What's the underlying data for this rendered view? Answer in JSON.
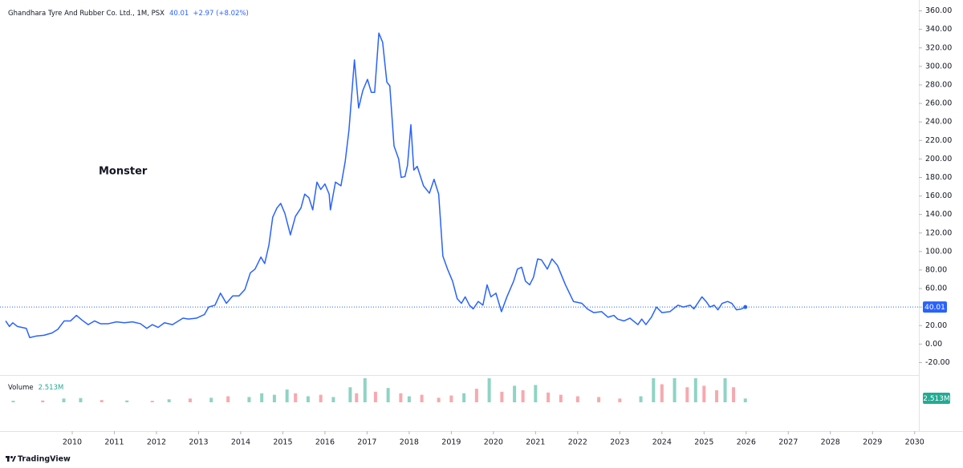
{
  "chart_data": [
    {
      "type": "line",
      "title": "Ghandhara Tyre And Rubber Co. Ltd., 1M, PSX",
      "last_price": 40.01,
      "change": "+2.97 (+8.02%)",
      "annotation": "Monster",
      "color": "#2962ff",
      "xlim": [
        2008.4,
        2030.1
      ],
      "xticks": [
        2010,
        2011,
        2012,
        2013,
        2014,
        2015,
        2016,
        2017,
        2018,
        2019,
        2020,
        2021,
        2022,
        2023,
        2024,
        2025,
        2026,
        2027,
        2028,
        2029,
        2030
      ],
      "ylim": [
        -30,
        370
      ],
      "yticks": [
        {
          "value": 360,
          "label": "360.00"
        },
        {
          "value": 340,
          "label": "340.00"
        },
        {
          "value": 320,
          "label": "320.00"
        },
        {
          "value": 300,
          "label": "300.00"
        },
        {
          "value": 280,
          "label": "280.00"
        },
        {
          "value": 260,
          "label": "260.00"
        },
        {
          "value": 240,
          "label": "240.00"
        },
        {
          "value": 220,
          "label": "220.00"
        },
        {
          "value": 200,
          "label": "200.00"
        },
        {
          "value": 180,
          "label": "180.00"
        },
        {
          "value": 160,
          "label": "160.00"
        },
        {
          "value": 140,
          "label": "140.00"
        },
        {
          "value": 120,
          "label": "120.00"
        },
        {
          "value": 100,
          "label": "100.00"
        },
        {
          "value": 80,
          "label": "80.00"
        },
        {
          "value": 60,
          "label": "60.00"
        },
        {
          "value": 40,
          "label": "40.00"
        },
        {
          "value": 20,
          "label": "20.00"
        },
        {
          "value": 0,
          "label": "0.00"
        },
        {
          "value": -20,
          "label": "-20.00"
        }
      ],
      "x": [
        2008.42,
        2008.51,
        2008.59,
        2008.7,
        2008.91,
        2008.99,
        2009.14,
        2009.33,
        2009.52,
        2009.66,
        2009.81,
        2009.96,
        2010.1,
        2010.23,
        2010.38,
        2010.53,
        2010.67,
        2010.86,
        2011.05,
        2011.24,
        2011.43,
        2011.62,
        2011.77,
        2011.9,
        2012.04,
        2012.19,
        2012.38,
        2012.63,
        2012.76,
        2012.95,
        2013.14,
        2013.24,
        2013.39,
        2013.52,
        2013.66,
        2013.81,
        2013.96,
        2014.1,
        2014.23,
        2014.34,
        2014.48,
        2014.57,
        2014.67,
        2014.76,
        2014.86,
        2014.95,
        2015.05,
        2015.18,
        2015.3,
        2015.43,
        2015.52,
        2015.62,
        2015.71,
        2015.81,
        2015.9,
        2016.0,
        2016.1,
        2016.13,
        2016.25,
        2016.38,
        2016.48,
        2016.57,
        2016.63,
        2016.7,
        2016.8,
        2016.9,
        2017.01,
        2017.1,
        2017.18,
        2017.28,
        2017.37,
        2017.47,
        2017.54,
        2017.64,
        2017.75,
        2017.81,
        2017.9,
        2017.96,
        2018.04,
        2018.11,
        2018.19,
        2018.34,
        2018.48,
        2018.59,
        2018.7,
        2018.8,
        2018.91,
        2019.03,
        2019.14,
        2019.24,
        2019.33,
        2019.43,
        2019.52,
        2019.64,
        2019.75,
        2019.85,
        2019.94,
        2020.06,
        2020.19,
        2020.32,
        2020.48,
        2020.57,
        2020.67,
        2020.76,
        2020.86,
        2020.95,
        2021.05,
        2021.14,
        2021.28,
        2021.39,
        2021.52,
        2021.71,
        2021.9,
        2022.1,
        2022.23,
        2022.38,
        2022.57,
        2022.72,
        2022.86,
        2022.95,
        2023.1,
        2023.24,
        2023.43,
        2023.52,
        2023.62,
        2023.75,
        2023.87,
        2024.0,
        2024.19,
        2024.38,
        2024.51,
        2024.67,
        2024.76,
        2024.95,
        2025.05,
        2025.14,
        2025.24,
        2025.33,
        2025.43,
        2025.56,
        2025.66,
        2025.77,
        2025.89,
        2025.98
      ],
      "values": [
        25,
        19,
        23,
        19,
        17,
        7,
        8.6,
        9.5,
        12,
        16,
        25,
        25,
        31,
        26,
        21,
        25,
        22,
        22,
        24,
        23,
        24,
        22,
        17,
        21,
        18,
        23,
        21,
        28,
        27,
        28,
        32,
        40,
        42,
        55,
        44,
        52,
        52,
        59,
        77,
        81,
        94,
        87,
        107,
        137,
        147,
        152,
        141,
        118,
        138,
        147,
        162,
        158,
        145,
        175,
        167,
        173,
        162,
        145,
        175,
        171,
        197,
        231,
        266,
        307,
        255,
        274,
        286,
        272,
        272,
        336,
        326,
        283,
        279,
        214,
        200,
        180,
        181,
        193,
        237,
        188,
        192,
        171,
        163,
        178,
        162,
        95,
        81,
        68,
        49,
        44,
        51,
        42,
        38,
        46,
        42,
        64,
        51,
        55,
        35,
        51,
        68,
        81,
        83,
        68,
        64,
        72,
        92,
        91,
        81,
        92,
        85,
        64,
        46,
        44,
        38,
        34,
        35,
        29,
        31,
        27,
        25,
        28,
        21,
        27,
        21,
        29,
        40,
        34,
        35,
        42,
        40,
        42,
        38,
        51,
        46,
        40,
        42,
        37,
        44,
        46,
        44,
        37,
        38,
        40.01
      ]
    },
    {
      "type": "bar",
      "title": "Volume",
      "last_value": {
        "value": 2513000,
        "label": "2.513M"
      },
      "xlim": [
        2008.4,
        2030.1
      ],
      "ylim": [
        0,
        16000000
      ],
      "x": [
        2008.6,
        2009.3,
        2009.8,
        2010.2,
        2010.7,
        2011.3,
        2011.9,
        2012.3,
        2012.8,
        2013.3,
        2013.7,
        2014.2,
        2014.5,
        2014.8,
        2015.1,
        2015.3,
        2015.6,
        2015.9,
        2016.2,
        2016.6,
        2016.75,
        2016.95,
        2017.2,
        2017.5,
        2017.8,
        2018.0,
        2018.3,
        2018.7,
        2019.0,
        2019.3,
        2019.6,
        2019.9,
        2020.2,
        2020.5,
        2020.7,
        2021.0,
        2021.3,
        2021.6,
        2022.0,
        2022.5,
        2023.0,
        2023.5,
        2023.8,
        2024.0,
        2024.3,
        2024.6,
        2024.8,
        2025.0,
        2025.3,
        2025.5,
        2025.7,
        2025.98
      ],
      "values": [
        1000000,
        1200000,
        2500000,
        2800000,
        1500000,
        1200000,
        1000000,
        2000000,
        2500000,
        3000000,
        4000000,
        3500000,
        6000000,
        5000000,
        8500000,
        6000000,
        4000000,
        5000000,
        3500000,
        10000000,
        6000000,
        16000000,
        7000000,
        9500000,
        6000000,
        4000000,
        5000000,
        3000000,
        4500000,
        6000000,
        9000000,
        16000000,
        7000000,
        11000000,
        8000000,
        11500000,
        6500000,
        5000000,
        4000000,
        3500000,
        2500000,
        4000000,
        16000000,
        12000000,
        16000000,
        10000000,
        16000000,
        11000000,
        8000000,
        16000000,
        10000000,
        2513000
      ],
      "colors": [
        "#8fd3c4",
        "#f7a9ae",
        "#8fd3c4",
        "#8fd3c4",
        "#f7a9ae",
        "#8fd3c4",
        "#f7a9ae",
        "#8fd3c4",
        "#f7a9ae",
        "#8fd3c4",
        "#f7a9ae",
        "#8fd3c4",
        "#8fd3c4",
        "#8fd3c4",
        "#8fd3c4",
        "#f7a9ae",
        "#8fd3c4",
        "#f7a9ae",
        "#8fd3c4",
        "#8fd3c4",
        "#f7a9ae",
        "#8fd3c4",
        "#f7a9ae",
        "#8fd3c4",
        "#f7a9ae",
        "#8fd3c4",
        "#f7a9ae",
        "#f7a9ae",
        "#f7a9ae",
        "#8fd3c4",
        "#f7a9ae",
        "#8fd3c4",
        "#f7a9ae",
        "#8fd3c4",
        "#f7a9ae",
        "#8fd3c4",
        "#f7a9ae",
        "#f7a9ae",
        "#f7a9ae",
        "#f7a9ae",
        "#f7a9ae",
        "#8fd3c4",
        "#8fd3c4",
        "#f7a9ae",
        "#8fd3c4",
        "#f7a9ae",
        "#8fd3c4",
        "#f7a9ae",
        "#f7a9ae",
        "#8fd3c4",
        "#f7a9ae",
        "#8fd3c4"
      ],
      "label_color": "#22ab94"
    }
  ],
  "footer": {
    "brand": "TradingView"
  }
}
